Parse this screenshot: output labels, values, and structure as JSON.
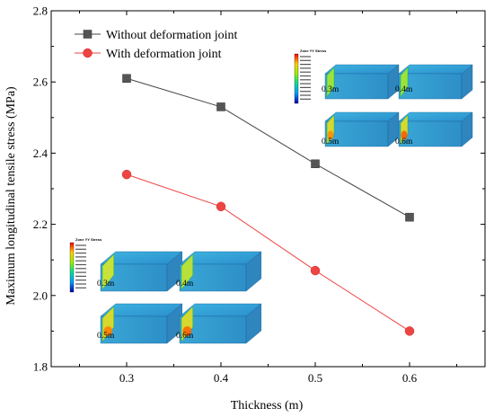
{
  "chart_data": {
    "type": "line",
    "xlabel": "Thickness (m)",
    "ylabel": "Maximum longitudinal tensile stress (MPa)",
    "x": [
      0.3,
      0.4,
      0.5,
      0.6
    ],
    "xlim": [
      0.22,
      0.68
    ],
    "ylim": [
      1.8,
      2.8
    ],
    "xticks": [
      "0.3",
      "0.4",
      "0.5",
      "0.6"
    ],
    "yticks": [
      "1.8",
      "2.0",
      "2.2",
      "2.4",
      "2.6",
      "2.8"
    ],
    "legend_position": "top-left",
    "grid": false,
    "series": [
      {
        "name": "Without deformation joint",
        "values": [
          2.61,
          2.53,
          2.37,
          2.22
        ],
        "color": "#444444",
        "marker": "square",
        "line_color": "#444444"
      },
      {
        "name": "With deformation joint",
        "values": [
          2.34,
          2.25,
          2.07,
          1.9
        ],
        "color": "#ee4444",
        "marker": "circle",
        "line_color": "#ee4444"
      }
    ],
    "insets": [
      {
        "title": "Zone YY Stress",
        "labels": [
          "0.3m",
          "0.4m",
          "0.5m",
          "0.6m"
        ]
      },
      {
        "title": "Zone YY Stress",
        "labels": [
          "0.3m",
          "0.4m",
          "0.5m",
          "0.6m"
        ]
      }
    ]
  }
}
